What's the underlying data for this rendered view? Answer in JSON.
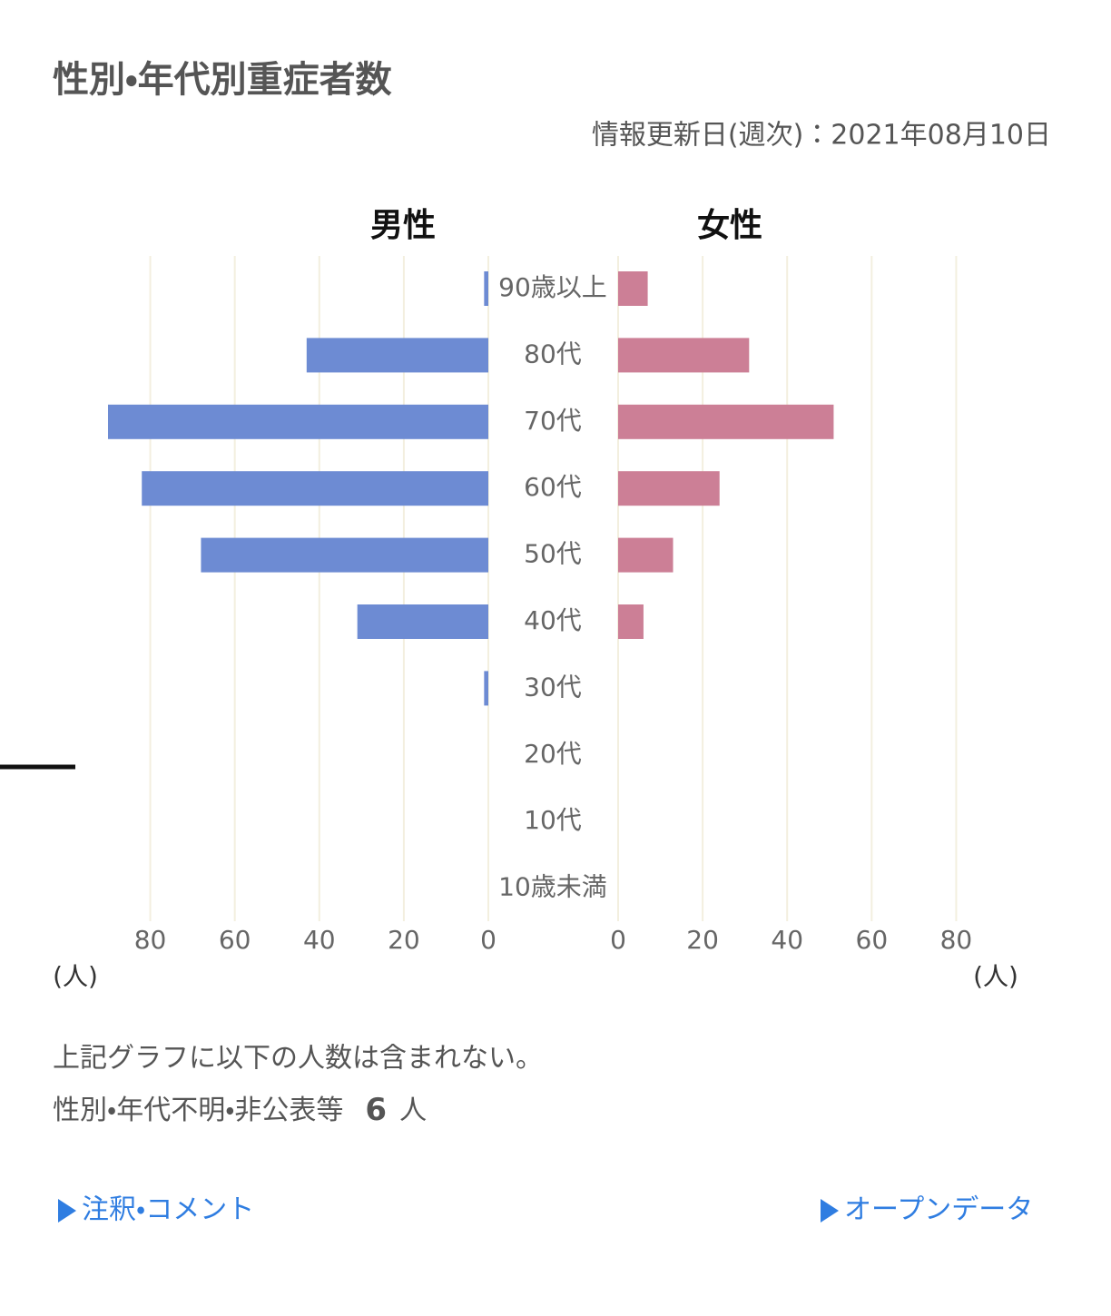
{
  "title": "性別・年代別重症者数",
  "updated": "情報更新日(週次)：2021年08月10日",
  "chart_data": {
    "type": "pyramid",
    "categories": [
      "90歳以上",
      "80代",
      "70代",
      "60代",
      "50代",
      "40代",
      "30代",
      "20代",
      "10代",
      "10歳未満"
    ],
    "series": [
      {
        "name": "男性",
        "color": "#6d8bd3",
        "values": [
          1,
          43,
          90,
          82,
          68,
          31,
          1,
          0,
          0,
          0
        ]
      },
      {
        "name": "女性",
        "color": "#cc7f96",
        "values": [
          7,
          31,
          51,
          24,
          13,
          6,
          0,
          0,
          0,
          0
        ]
      }
    ],
    "xlim": [
      0,
      90
    ],
    "xticks": [
      0,
      20,
      40,
      60,
      80
    ],
    "x_unit": "(人)",
    "grid": true
  },
  "notes": {
    "line1": "上記グラフに以下の人数は含まれない。",
    "line2_label": "性別・年代不明・非公表等",
    "line2_count": 6,
    "line2_unit": "人"
  },
  "links": {
    "comments": "注釈・コメント",
    "open_data": "オープンデータ"
  }
}
